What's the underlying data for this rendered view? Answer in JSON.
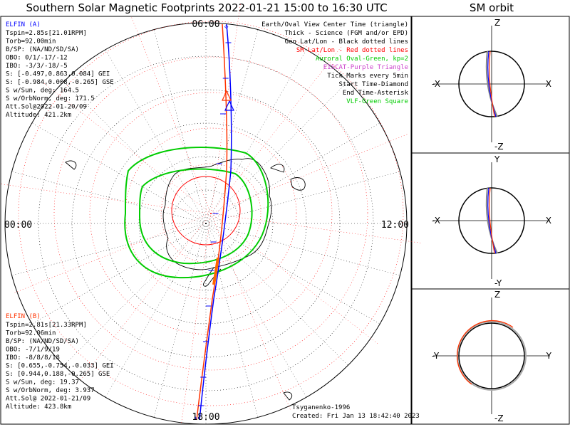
{
  "title": "Southern Solar Magnetic Footprints 2022-01-21 15:00 to 16:30 UTC",
  "sm_orbit_title": "SM orbit",
  "colors": {
    "probe_a": "#0000ff",
    "probe_b": "#ff0000",
    "aurora": "#00cc00",
    "purple": "#cc44cc"
  },
  "probe_a": {
    "name": "ELFIN (A)",
    "lines": [
      "Tspin=2.85s[21.01RPM]",
      "Torb=92.00min",
      "B/SP: (NA/ND/SD/SA)",
      "OBO: 0/1/-17/-12",
      "IBO: -3/3/-18/-5",
      "S: [-0.497,0.863,0.084] GEI",
      "S: [-0.984,0.008,-0.265] GSE",
      "S w/Sun, deg: 164.5",
      "S w/OrbNorm, deg: 171.5",
      "Att.Sol@2022-01-20/09",
      "Altitude: 421.2km"
    ]
  },
  "probe_b": {
    "name": "ELFIN (B)",
    "lines": [
      "Tspin=2.81s[21.33RPM]",
      "Torb=92.06min",
      "B/SP: (NA/ND/SD/SA)",
      "OBO: -7/1/9/19",
      "IBO: -8/8/8/18",
      "S: [0.655,-0.754,-0.033] GEI",
      "S: [0.944,0.188,-0.265] GSE",
      "S w/Sun, deg: 19.37",
      "S w/OrbNorm, deg: 3.937",
      "Att.Sol@ 2022-01-21/09",
      "Altitude: 423.8km"
    ]
  },
  "legend": [
    {
      "text": "Earth/Oval View Center Time (triangle)",
      "color": "#000000"
    },
    {
      "text": "Thick - Science (FGM and/or EPD)",
      "color": "#000000"
    },
    {
      "text": "Geo Lat/Lon - Black dotted lines",
      "color": "#000000"
    },
    {
      "text": "SM Lat/Lon - Red dotted lines",
      "color": "#ff0000"
    },
    {
      "text": "Auroral Oval-Green, kp=2",
      "color": "#00cc00"
    },
    {
      "text": "EISCAT-Purple Triangle",
      "color": "#cc44cc"
    },
    {
      "text": "Tick Marks every 5min",
      "color": "#000000"
    },
    {
      "text": "Start Time-Diamond",
      "color": "#000000"
    },
    {
      "text": "End Time-Asterisk",
      "color": "#000000"
    },
    {
      "text": "VLF-Green Square",
      "color": "#00cc00"
    }
  ],
  "mlt_labels": {
    "top": "06:00",
    "bottom": "18:00",
    "left": "00:00",
    "right": "12:00"
  },
  "credit": {
    "model": "Tsyganenko-1996",
    "created": "Created: Fri Jan 13 18:42:40 2023"
  },
  "orbit_panels": [
    {
      "up": "Z",
      "down": "-Z",
      "left": "-X",
      "right": "X"
    },
    {
      "up": "Y",
      "down": "-Y",
      "left": "-X",
      "right": "X"
    },
    {
      "up": "Z",
      "down": "-Z",
      "left": "-Y",
      "right": "Y"
    }
  ]
}
